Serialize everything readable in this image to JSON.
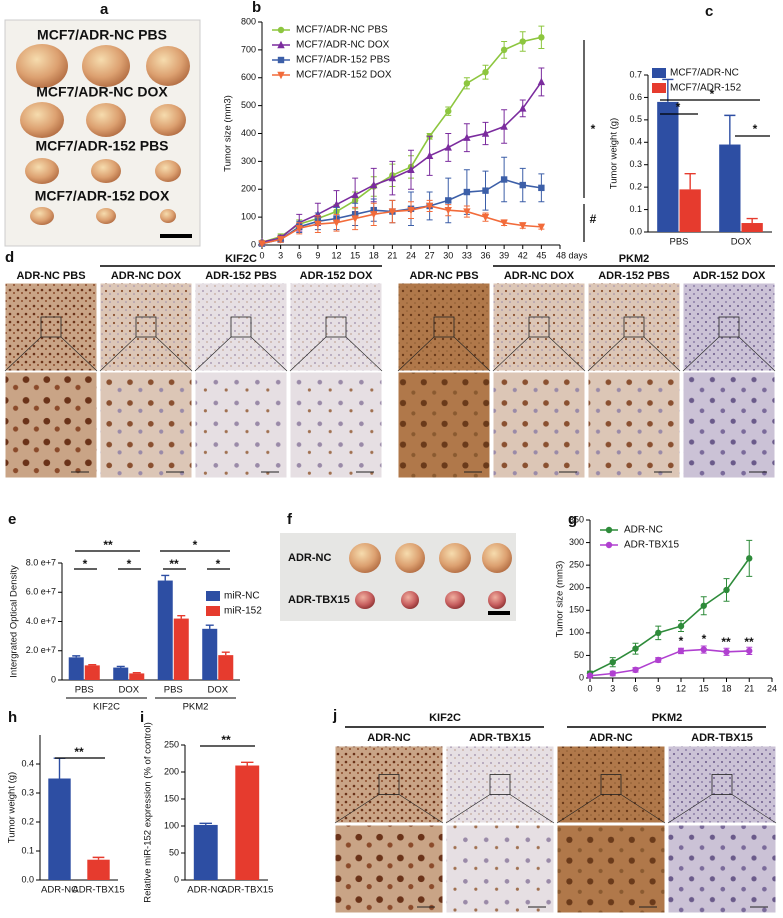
{
  "chart_data": [
    {
      "panel": "b",
      "type": "line",
      "y_label": "Tumor size (mm3)",
      "x": [
        0,
        3,
        6,
        9,
        12,
        15,
        18,
        21,
        24,
        27,
        30,
        33,
        36,
        39,
        42,
        45
      ],
      "xlim": [
        0,
        48
      ],
      "xticks": [
        0,
        3,
        6,
        9,
        12,
        15,
        18,
        21,
        24,
        27,
        30,
        33,
        36,
        39,
        42,
        45,
        {
          "value": 48,
          "label": "48 days"
        }
      ],
      "ylim": [
        0,
        800
      ],
      "yticks": [
        0,
        100,
        200,
        300,
        400,
        500,
        600,
        700,
        800
      ],
      "legend": "upper left",
      "annotations": [
        "*",
        "#"
      ],
      "series": [
        {
          "name": "MCF7/ADR-NC PBS",
          "color": "#8dc63f",
          "marker": "circle",
          "values": [
            10,
            30,
            75,
            95,
            120,
            160,
            210,
            250,
            280,
            390,
            480,
            580,
            620,
            700,
            730,
            745
          ],
          "errors": [
            5,
            10,
            15,
            20,
            25,
            30,
            35,
            40,
            40,
            10,
            15,
            20,
            25,
            30,
            35,
            40
          ]
        },
        {
          "name": "MCF7/ADR-NC DOX",
          "color": "#7b2c9e",
          "marker": "triangle",
          "values": [
            10,
            25,
            80,
            110,
            145,
            180,
            215,
            240,
            270,
            320,
            350,
            385,
            400,
            425,
            490,
            585
          ],
          "errors": [
            5,
            10,
            30,
            40,
            50,
            60,
            60,
            60,
            70,
            70,
            50,
            50,
            40,
            60,
            30,
            50
          ]
        },
        {
          "name": "MCF7/ADR-152 PBS",
          "color": "#3c5fa8",
          "marker": "square",
          "values": [
            5,
            20,
            65,
            85,
            95,
            110,
            125,
            120,
            130,
            140,
            160,
            190,
            195,
            235,
            215,
            205
          ],
          "errors": [
            5,
            10,
            20,
            30,
            40,
            40,
            40,
            40,
            60,
            50,
            80,
            80,
            70,
            80,
            60,
            50
          ]
        },
        {
          "name": "MCF7/ADR-152 DOX",
          "color": "#f26b3a",
          "marker": "triangle-down",
          "values": [
            5,
            20,
            60,
            75,
            80,
            95,
            110,
            120,
            125,
            140,
            125,
            120,
            100,
            80,
            70,
            65
          ],
          "errors": [
            5,
            10,
            20,
            30,
            30,
            40,
            40,
            40,
            30,
            20,
            20,
            20,
            15,
            10,
            10,
            8
          ]
        }
      ]
    },
    {
      "panel": "c",
      "type": "bar",
      "y_label": "Tumor weight (g)",
      "categories": [
        "PBS",
        "DOX"
      ],
      "ylim": [
        0,
        0.7
      ],
      "yticks": [
        {
          "value": 0,
          "label": "0.0"
        },
        0.1,
        0.2,
        0.3,
        0.4,
        0.5,
        0.6,
        0.7
      ],
      "legend": "upper left",
      "annotations": [
        "*",
        "*",
        "*"
      ],
      "series": [
        {
          "name": "MCF7/ADR-NC",
          "color": "#2d4ea3",
          "values": [
            0.58,
            0.39
          ],
          "errors": [
            0.1,
            0.13
          ]
        },
        {
          "name": "MCF7/ADR-152",
          "color": "#e63b2e",
          "values": [
            0.19,
            0.04
          ],
          "errors": [
            0.07,
            0.02
          ]
        }
      ]
    },
    {
      "panel": "e",
      "type": "bar",
      "y_label": "Intergrated Optical Density",
      "categories": [
        "PBS",
        "DOX",
        "PBS",
        "DOX"
      ],
      "groups": [
        "KIF2C",
        "PKM2"
      ],
      "ylim": [
        0,
        80000000
      ],
      "yticks": [
        0,
        {
          "value": 20000000,
          "label": "2.0 e+7"
        },
        {
          "value": 40000000,
          "label": "4.0 e+7"
        },
        {
          "value": 60000000,
          "label": "6.0 e+7"
        },
        {
          "value": 80000000,
          "label": "8.0 e+7"
        }
      ],
      "legend": "upper right",
      "annotations": [
        "**",
        "*",
        "*",
        "*",
        "**",
        "*"
      ],
      "series": [
        {
          "name": "miR-NC",
          "color": "#2d4ea3",
          "values": [
            15500000,
            8500000,
            68000000,
            35000000
          ],
          "errors": [
            1000000,
            800000,
            3500000,
            2500000
          ]
        },
        {
          "name": "miR-152",
          "color": "#e63b2e",
          "values": [
            10000000,
            4500000,
            42000000,
            17000000
          ],
          "errors": [
            500000,
            500000,
            2000000,
            2000000
          ]
        }
      ]
    },
    {
      "panel": "g",
      "type": "line",
      "y_label": "Tumor size (mm3)",
      "x": [
        0,
        3,
        6,
        9,
        12,
        15,
        18,
        21
      ],
      "xlim": [
        0,
        24
      ],
      "xticks": [
        0,
        3,
        6,
        9,
        12,
        15,
        18,
        21,
        24
      ],
      "ylim": [
        0,
        350
      ],
      "yticks": [
        0,
        50,
        100,
        150,
        200,
        250,
        300,
        350
      ],
      "legend": "upper left",
      "annotations": [
        "*",
        "*",
        "**",
        "**"
      ],
      "series": [
        {
          "name": "ADR-NC",
          "color": "#2e8b3a",
          "marker": "circle",
          "values": [
            10,
            35,
            65,
            100,
            115,
            160,
            195,
            265
          ],
          "errors": [
            5,
            10,
            12,
            15,
            12,
            20,
            25,
            40
          ]
        },
        {
          "name": "ADR-TBX15",
          "color": "#b040d0",
          "marker": "circle",
          "values": [
            5,
            10,
            18,
            40,
            60,
            63,
            58,
            60
          ],
          "errors": [
            3,
            5,
            5,
            5,
            6,
            8,
            8,
            8
          ]
        }
      ]
    },
    {
      "panel": "h",
      "type": "bar",
      "y_label": "Tumor weight (g)",
      "categories": [
        "ADR-NC",
        "ADR-TBX15"
      ],
      "values": [
        0.35,
        0.07
      ],
      "errors": [
        0.07,
        0.008
      ],
      "colors": [
        "#2d4ea3",
        "#e63b2e"
      ],
      "ylim": [
        0,
        0.5
      ],
      "yticks": [
        {
          "value": 0,
          "label": "0.0"
        },
        0.1,
        0.2,
        0.3,
        0.4
      ],
      "annotations": [
        "**"
      ]
    },
    {
      "panel": "i",
      "type": "bar",
      "y_label": "Relative miR-152 expression (% of control)",
      "categories": [
        "ADR-NC",
        "ADR-TBX15"
      ],
      "values": [
        102,
        212
      ],
      "errors": [
        3,
        6
      ],
      "colors": [
        "#2d4ea3",
        "#e63b2e"
      ],
      "ylim": [
        0,
        250
      ],
      "yticks": [
        0,
        50,
        100,
        150,
        200,
        250
      ],
      "annotations": [
        "**"
      ]
    }
  ],
  "figure_panels": {
    "a": {
      "letter": "a",
      "rows": [
        "MCF7/ADR-NC PBS",
        "MCF7/ADR-NC DOX",
        "MCF7/ADR-152 PBS",
        "MCF7/ADR-152 DOX"
      ]
    },
    "d": {
      "letter": "d",
      "groups": [
        {
          "marker": "KIF2C",
          "columns": [
            "ADR-NC PBS",
            "ADR-NC DOX",
            "ADR-152 PBS",
            "ADR-152 DOX"
          ]
        },
        {
          "marker": "PKM2",
          "columns": [
            "ADR-NC PBS",
            "ADR-NC DOX",
            "ADR-152 PBS",
            "ADR-152 DOX"
          ]
        }
      ]
    },
    "f": {
      "letter": "f",
      "rows": [
        "ADR-NC",
        "ADR-TBX15"
      ]
    },
    "j": {
      "letter": "j",
      "groups": [
        {
          "marker": "KIF2C",
          "columns": [
            "ADR-NC",
            "ADR-TBX15"
          ]
        },
        {
          "marker": "PKM2",
          "columns": [
            "ADR-NC",
            "ADR-TBX15"
          ]
        }
      ]
    }
  }
}
